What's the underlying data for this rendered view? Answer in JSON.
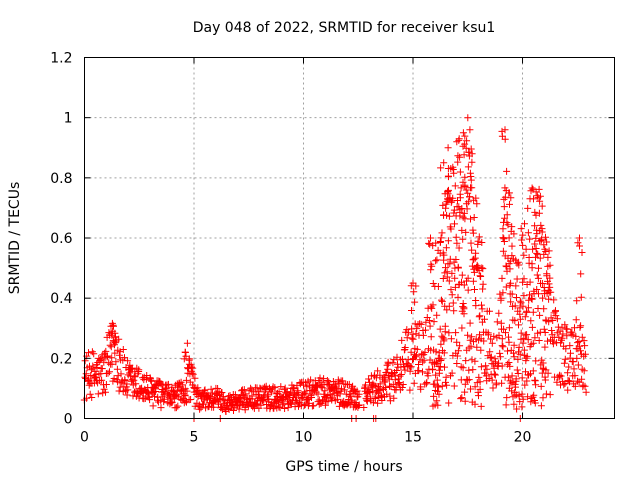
{
  "chart_data": {
    "type": "scatter",
    "title": "Day 048 of 2022, SRMTID for receiver ksu1",
    "xlabel": "GPS time / hours",
    "ylabel": "SRMTID / TECUs",
    "xlim": [
      0,
      24.2
    ],
    "ylim": [
      0,
      1.2
    ],
    "xticks": [
      0,
      5,
      10,
      15,
      20
    ],
    "yticks": [
      0,
      0.2,
      0.4,
      0.6,
      0.8,
      1,
      1.2
    ],
    "xtick_labels": [
      "0",
      "5",
      "10",
      "15",
      "20"
    ],
    "ytick_labels": [
      "0",
      "0.2",
      "0.4",
      "0.6",
      "0.8",
      "1",
      "1.2"
    ],
    "grid": true,
    "marker": "plus",
    "color": "#ff0000",
    "series": [
      {
        "name": "SRMTID",
        "profile": [
          {
            "x": 0.0,
            "y": 0.13
          },
          {
            "x": 0.3,
            "y": 0.15
          },
          {
            "x": 0.6,
            "y": 0.14
          },
          {
            "x": 0.9,
            "y": 0.15
          },
          {
            "x": 1.2,
            "y": 0.2
          },
          {
            "x": 1.45,
            "y": 0.24
          },
          {
            "x": 1.7,
            "y": 0.16
          },
          {
            "x": 2.0,
            "y": 0.12
          },
          {
            "x": 2.5,
            "y": 0.11
          },
          {
            "x": 3.0,
            "y": 0.09
          },
          {
            "x": 3.5,
            "y": 0.08
          },
          {
            "x": 4.0,
            "y": 0.07
          },
          {
            "x": 4.5,
            "y": 0.08
          },
          {
            "x": 4.8,
            "y": 0.14
          },
          {
            "x": 5.2,
            "y": 0.06
          },
          {
            "x": 6.0,
            "y": 0.07
          },
          {
            "x": 6.5,
            "y": 0.05
          },
          {
            "x": 7.0,
            "y": 0.06
          },
          {
            "x": 8.0,
            "y": 0.07
          },
          {
            "x": 9.0,
            "y": 0.07
          },
          {
            "x": 10.0,
            "y": 0.08
          },
          {
            "x": 11.0,
            "y": 0.09
          },
          {
            "x": 12.0,
            "y": 0.08
          },
          {
            "x": 12.5,
            "y": 0.07
          },
          {
            "x": 13.0,
            "y": 0.09
          },
          {
            "x": 13.6,
            "y": 0.11
          },
          {
            "x": 14.2,
            "y": 0.14
          },
          {
            "x": 14.8,
            "y": 0.2
          },
          {
            "x": 15.2,
            "y": 0.21
          },
          {
            "x": 15.6,
            "y": 0.22
          },
          {
            "x": 16.0,
            "y": 0.33
          },
          {
            "x": 16.5,
            "y": 0.42
          },
          {
            "x": 16.9,
            "y": 0.48
          },
          {
            "x": 17.3,
            "y": 0.5
          },
          {
            "x": 17.6,
            "y": 0.52
          },
          {
            "x": 17.9,
            "y": 0.4
          },
          {
            "x": 18.3,
            "y": 0.26
          },
          {
            "x": 18.7,
            "y": 0.22
          },
          {
            "x": 19.0,
            "y": 0.28
          },
          {
            "x": 19.2,
            "y": 0.44
          },
          {
            "x": 19.5,
            "y": 0.36
          },
          {
            "x": 19.8,
            "y": 0.3
          },
          {
            "x": 20.2,
            "y": 0.4
          },
          {
            "x": 20.6,
            "y": 0.44
          },
          {
            "x": 21.0,
            "y": 0.36
          },
          {
            "x": 21.4,
            "y": 0.27
          },
          {
            "x": 21.8,
            "y": 0.22
          },
          {
            "x": 22.2,
            "y": 0.2
          },
          {
            "x": 22.6,
            "y": 0.22
          },
          {
            "x": 22.9,
            "y": 0.16
          }
        ],
        "peaks": [
          {
            "x": 1.3,
            "y": 0.31
          },
          {
            "x": 4.7,
            "y": 0.25
          },
          {
            "x": 15.0,
            "y": 0.45
          },
          {
            "x": 15.8,
            "y": 0.6
          },
          {
            "x": 16.4,
            "y": 0.85
          },
          {
            "x": 16.6,
            "y": 0.9
          },
          {
            "x": 17.0,
            "y": 0.92
          },
          {
            "x": 17.3,
            "y": 0.95
          },
          {
            "x": 17.5,
            "y": 1.0
          },
          {
            "x": 17.7,
            "y": 0.88
          },
          {
            "x": 19.2,
            "y": 0.96
          },
          {
            "x": 19.4,
            "y": 0.75
          },
          {
            "x": 20.5,
            "y": 0.73
          },
          {
            "x": 20.9,
            "y": 0.62
          },
          {
            "x": 22.6,
            "y": 0.6
          }
        ],
        "baseline_points": [
          {
            "x": 5.0,
            "y": 0.0
          },
          {
            "x": 6.2,
            "y": 0.0
          },
          {
            "x": 12.2,
            "y": 0.0
          },
          {
            "x": 12.4,
            "y": 0.0
          },
          {
            "x": 13.2,
            "y": 0.0
          },
          {
            "x": 13.3,
            "y": 0.0
          },
          {
            "x": 19.9,
            "y": 0.0
          }
        ],
        "gaps": [
          [
            12.55,
            12.75
          ],
          [
            23.0,
            24.2
          ]
        ]
      }
    ]
  }
}
